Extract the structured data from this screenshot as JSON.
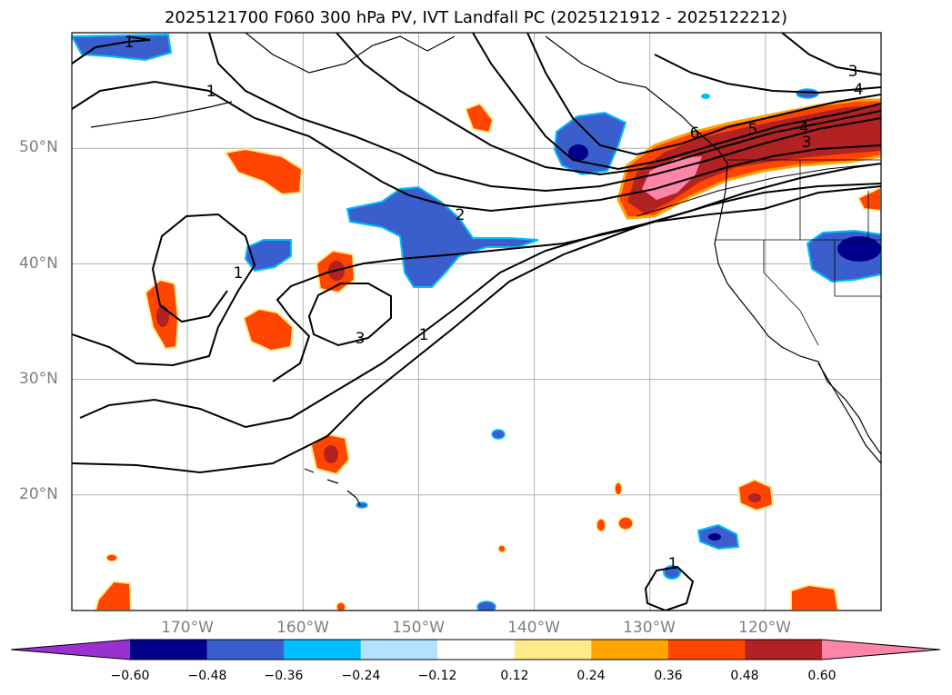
{
  "title": "2025121700 F060 300 hPa PV, IVT Landfall PC (2025121912 - 2025122212)",
  "map": {
    "lon_range": [
      -180,
      -110
    ],
    "lat_range": [
      10,
      60
    ],
    "lat_labels": [
      "50°N",
      "40°N",
      "30°N",
      "20°N"
    ],
    "lat_values": [
      50,
      40,
      30,
      20
    ],
    "lon_labels": [
      "170°W",
      "160°W",
      "150°W",
      "140°W",
      "130°W",
      "120°W"
    ],
    "lon_values": [
      -170,
      -160,
      -150,
      -140,
      -130,
      -120
    ],
    "grid_color": "#b0b0b0",
    "contour_labels": [
      "1",
      "1",
      "1",
      "1",
      "2",
      "3",
      "3",
      "4",
      "4",
      "5",
      "6",
      "3",
      "1"
    ]
  },
  "colorbar": {
    "ticks": [
      "−0.60",
      "−0.48",
      "−0.36",
      "−0.24",
      "−0.12",
      "0.12",
      "0.24",
      "0.36",
      "0.48",
      "0.60"
    ],
    "colors": [
      "#9b30d0",
      "#00008b",
      "#3a5fcd",
      "#00bfff",
      "#b2e2ff",
      "#ffffff",
      "#ffeb8a",
      "#ffa500",
      "#ff4500",
      "#b22222",
      "#ff85a8"
    ]
  }
}
